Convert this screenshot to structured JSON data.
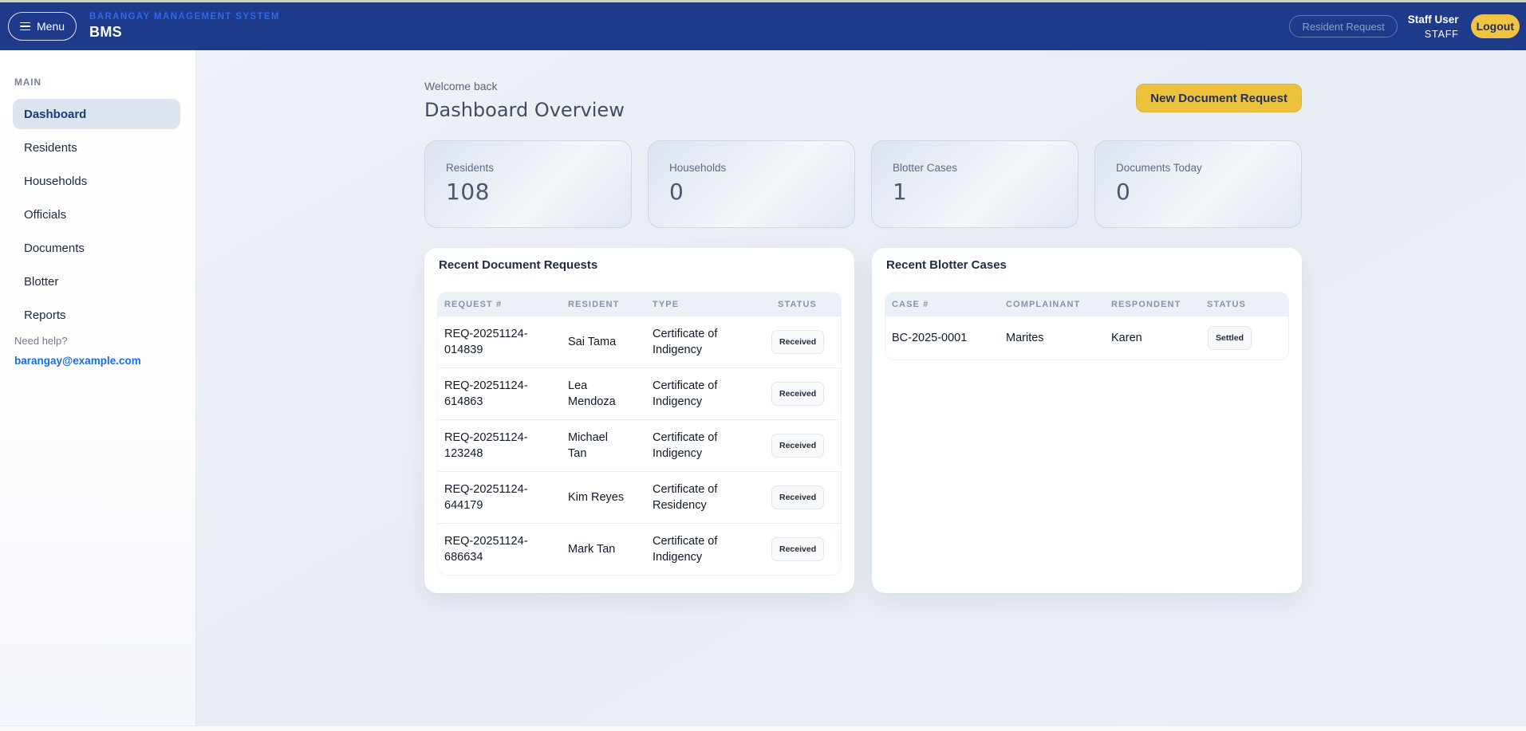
{
  "navbar": {
    "menu_label": "Menu",
    "brand_small": "BARANGAY MANAGEMENT SYSTEM",
    "brand": "BMS",
    "resident_request_label": "Resident Request",
    "user_name": "Staff User",
    "user_role": "STAFF",
    "logout_label": "Logout"
  },
  "sidebar": {
    "section_label": "MAIN",
    "items": [
      {
        "label": "Dashboard",
        "active": true
      },
      {
        "label": "Residents",
        "active": false
      },
      {
        "label": "Households",
        "active": false
      },
      {
        "label": "Officials",
        "active": false
      },
      {
        "label": "Documents",
        "active": false
      },
      {
        "label": "Blotter",
        "active": false
      },
      {
        "label": "Reports",
        "active": false
      }
    ],
    "help_text": "Need help?",
    "help_email": "barangay@example.com"
  },
  "header": {
    "welcome": "Welcome back",
    "title": "Dashboard Overview",
    "new_request_label": "New Document Request"
  },
  "stats": [
    {
      "label": "Residents",
      "value": "108"
    },
    {
      "label": "Households",
      "value": "0"
    },
    {
      "label": "Blotter Cases",
      "value": "1"
    },
    {
      "label": "Documents Today",
      "value": "0"
    }
  ],
  "document_requests": {
    "title": "Recent Document Requests",
    "columns": [
      "REQUEST #",
      "RESIDENT",
      "TYPE",
      "STATUS"
    ],
    "rows": [
      {
        "request": "REQ-20251124-014839",
        "resident": "Sai Tama",
        "type": "Certificate of Indigency",
        "status": "Received"
      },
      {
        "request": "REQ-20251124-614863",
        "resident": "Lea Mendoza",
        "type": "Certificate of Indigency",
        "status": "Received"
      },
      {
        "request": "REQ-20251124-123248",
        "resident": "Michael Tan",
        "type": "Certificate of Indigency",
        "status": "Received"
      },
      {
        "request": "REQ-20251124-644179",
        "resident": "Kim Reyes",
        "type": "Certificate of Residency",
        "status": "Received"
      },
      {
        "request": "REQ-20251124-686634",
        "resident": "Mark Tan",
        "type": "Certificate of Indigency",
        "status": "Received"
      }
    ]
  },
  "blotter_cases": {
    "title": "Recent Blotter Cases",
    "columns": [
      "CASE #",
      "COMPLAINANT",
      "RESPONDENT",
      "STATUS"
    ],
    "rows": [
      {
        "case": "BC-2025-0001",
        "complainant": "Marites",
        "respondent": "Karen",
        "status": "Settled"
      }
    ]
  },
  "colors": {
    "navbar_bg": "#1e3a8a",
    "brand_text": "#2e6ae9",
    "accent_yellow": "#ecc23c",
    "link_blue": "#176de8",
    "active_item_bg": "#dce4f0",
    "main_bg": "#eaeef5"
  }
}
